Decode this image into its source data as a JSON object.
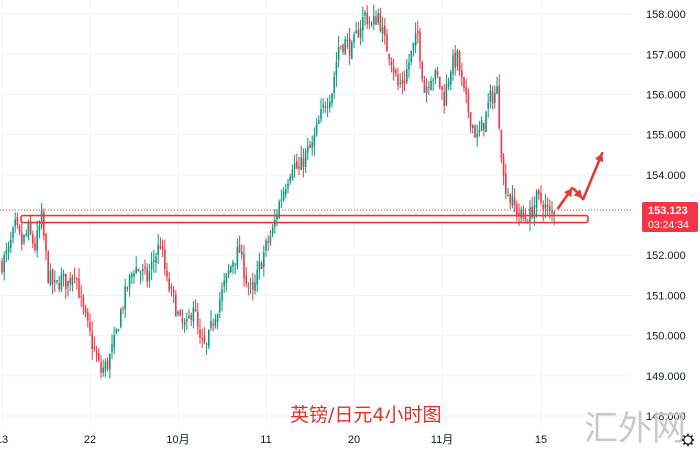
{
  "chart_data": {
    "type": "candlestick",
    "caption": "英镑/日元4小时图",
    "y_ticks": [
      "158.000",
      "157.000",
      "156.000",
      "155.000",
      "154.000",
      "153.000",
      "152.000",
      "151.000",
      "150.000",
      "149.000",
      "148.000"
    ],
    "y_range": [
      147.7,
      158.35
    ],
    "x_ticks": [
      {
        "label": "13",
        "index": 0
      },
      {
        "label": "22",
        "index": 40
      },
      {
        "label": "10月",
        "index": 80
      },
      {
        "label": "11",
        "index": 120
      },
      {
        "label": "20",
        "index": 160
      },
      {
        "label": "11月",
        "index": 200
      },
      {
        "label": "15",
        "index": 245
      }
    ],
    "candles_count": 252,
    "current_price": "153.123",
    "countdown": "03:24:34",
    "support_level": 152.9,
    "path_points": [
      [
        0,
        151.8
      ],
      [
        3,
        152.1
      ],
      [
        6,
        152.7
      ],
      [
        9,
        152.3
      ],
      [
        12,
        152.6
      ],
      [
        15,
        152.2
      ],
      [
        18,
        152.9
      ],
      [
        21,
        151.5
      ],
      [
        24,
        151.2
      ],
      [
        27,
        151.4
      ],
      [
        30,
        151.3
      ],
      [
        33,
        151.7
      ],
      [
        36,
        150.8
      ],
      [
        39,
        150.2
      ],
      [
        42,
        149.6
      ],
      [
        45,
        149.1
      ],
      [
        48,
        149.3
      ],
      [
        51,
        149.8
      ],
      [
        54,
        150.6
      ],
      [
        57,
        151.2
      ],
      [
        60,
        151.7
      ],
      [
        63,
        151.6
      ],
      [
        66,
        151.4
      ],
      [
        69,
        151.9
      ],
      [
        72,
        152.3
      ],
      [
        75,
        151.3
      ],
      [
        78,
        150.9
      ],
      [
        81,
        150.3
      ],
      [
        84,
        150.2
      ],
      [
        87,
        150.8
      ],
      [
        90,
        149.8
      ],
      [
        93,
        149.7
      ],
      [
        96,
        150.4
      ],
      [
        99,
        150.9
      ],
      [
        102,
        151.4
      ],
      [
        105,
        151.9
      ],
      [
        108,
        152.1
      ],
      [
        111,
        151.4
      ],
      [
        114,
        151.0
      ],
      [
        117,
        151.7
      ],
      [
        120,
        152.2
      ],
      [
        123,
        152.6
      ],
      [
        126,
        153.3
      ],
      [
        129,
        153.8
      ],
      [
        132,
        154.3
      ],
      [
        135,
        154.1
      ],
      [
        138,
        154.5
      ],
      [
        141,
        154.7
      ],
      [
        144,
        155.3
      ],
      [
        147,
        155.8
      ],
      [
        150,
        156.1
      ],
      [
        153,
        157.2
      ],
      [
        156,
        157.3
      ],
      [
        159,
        157.1
      ],
      [
        162,
        157.6
      ],
      [
        165,
        158.0
      ],
      [
        168,
        157.7
      ],
      [
        171,
        158.0
      ],
      [
        174,
        157.3
      ],
      [
        177,
        156.9
      ],
      [
        180,
        156.2
      ],
      [
        183,
        156.4
      ],
      [
        186,
        157.0
      ],
      [
        189,
        157.5
      ],
      [
        192,
        156.1
      ],
      [
        195,
        156.5
      ],
      [
        198,
        156.4
      ],
      [
        201,
        155.9
      ],
      [
        204,
        156.7
      ],
      [
        207,
        156.9
      ],
      [
        210,
        156.0
      ],
      [
        213,
        155.4
      ],
      [
        216,
        154.9
      ],
      [
        219,
        155.3
      ],
      [
        222,
        155.9
      ],
      [
        225,
        156.1
      ],
      [
        228,
        153.9
      ],
      [
        231,
        153.4
      ],
      [
        234,
        153.1
      ],
      [
        237,
        152.9
      ],
      [
        240,
        153.0
      ],
      [
        243,
        153.4
      ],
      [
        246,
        153.3
      ],
      [
        249,
        153.0
      ],
      [
        251,
        153.12
      ]
    ]
  },
  "colors": {
    "up": "#089981",
    "down": "#f23645",
    "accent_red": "#e53935",
    "price_tag": "#f23645",
    "grid": "#f0f3fa",
    "watermark": "#c9c9c9"
  },
  "watermark": "汇外网"
}
